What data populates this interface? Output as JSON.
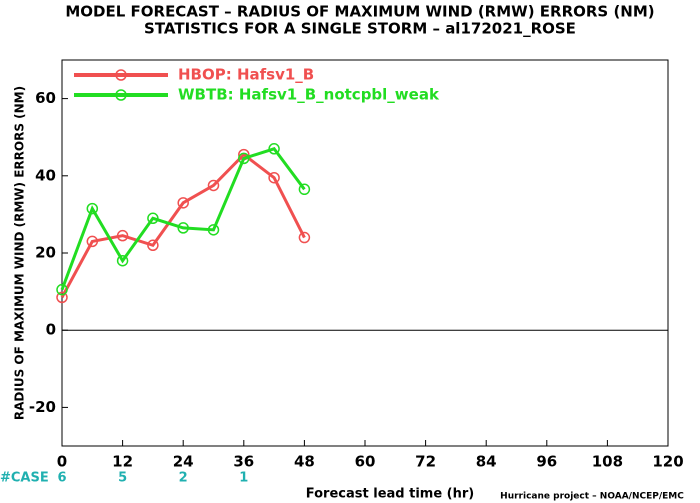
{
  "chart_data": {
    "type": "line",
    "title": "MODEL FORECAST – RADIUS OF MAXIMUM WIND (RMW) ERRORS (NM)",
    "subtitle": "STATISTICS FOR A SINGLE STORM – al172021_ROSE",
    "x_label": "Forecast lead time (hr)",
    "y_label": "RADIUS OF MAXIMUM WIND (RMW) ERRORS (NM)",
    "credit": "Hurricane project – NOAA/NCEP/EMC",
    "x": [
      0,
      6,
      12,
      18,
      24,
      30,
      36,
      42,
      48
    ],
    "series": [
      {
        "name": "HBOP: Hafsv1_B",
        "color": "#f05050",
        "values": [
          8.5,
          23,
          24.5,
          22,
          33,
          37.5,
          45.5,
          39.5,
          24
        ]
      },
      {
        "name": "WBTB: Hafsv1_B_notcpbl_weak",
        "color": "#22dd22",
        "values": [
          10.5,
          31.5,
          18,
          29,
          26.5,
          26,
          44.5,
          47,
          36.5
        ]
      }
    ],
    "cases": {
      "label": "#CASE",
      "color": "#20b0b0",
      "x": [
        0,
        12,
        24,
        36
      ],
      "values": [
        6,
        5,
        2,
        1
      ]
    },
    "xlim": [
      0,
      120
    ],
    "xticks": [
      0,
      12,
      24,
      36,
      48,
      60,
      72,
      84,
      96,
      108,
      120
    ],
    "ylim": [
      -30,
      70
    ],
    "yticks": [
      -20,
      0,
      20,
      40,
      60
    ],
    "legend": "upper left"
  }
}
